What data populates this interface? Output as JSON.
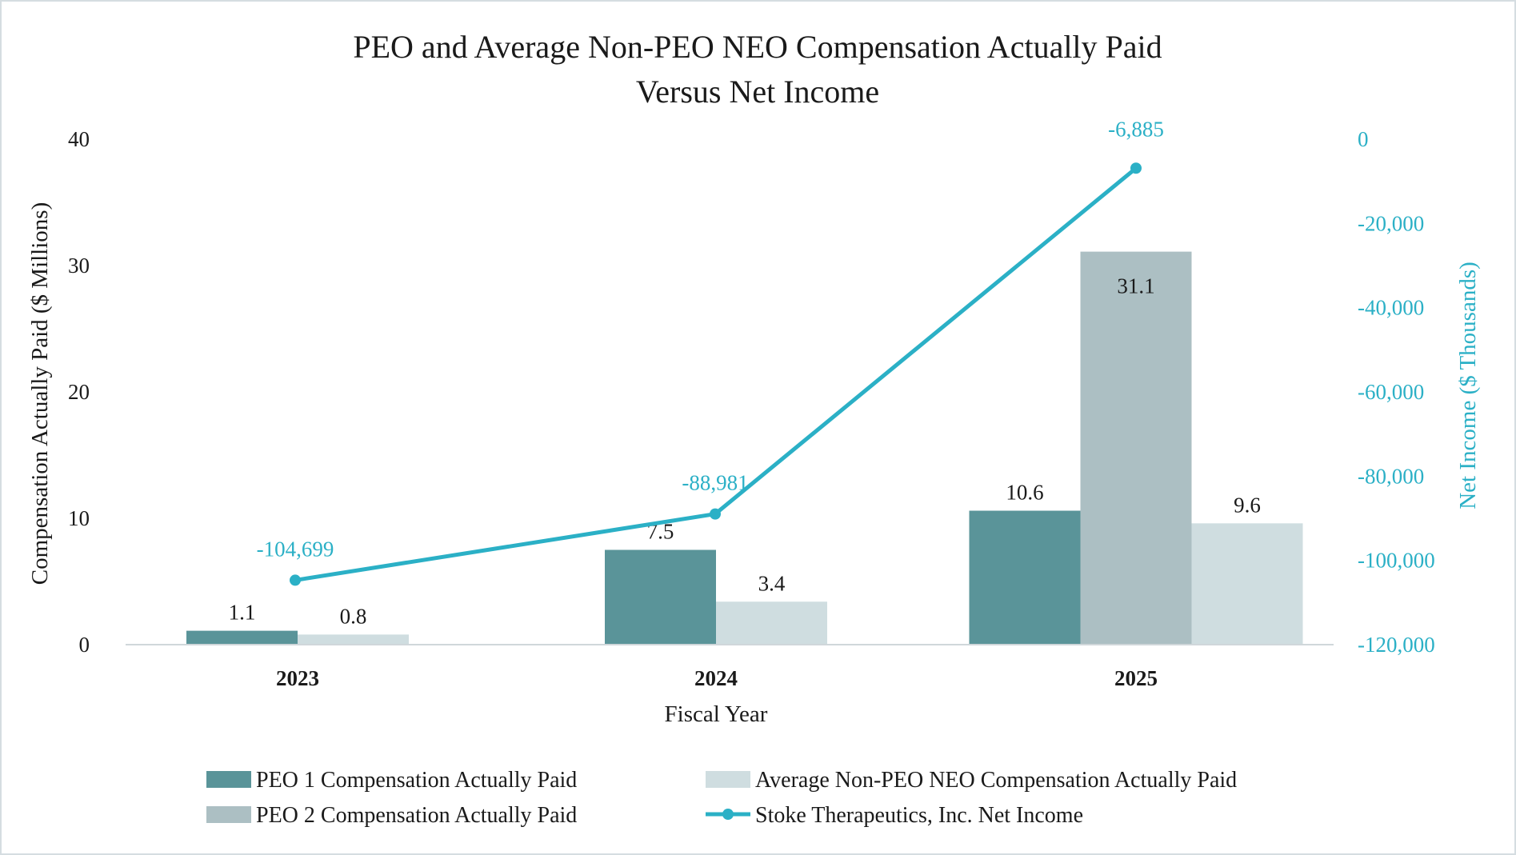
{
  "chart_data": {
    "type": "bar",
    "title": [
      "PEO and Average Non-PEO NEO Compensation Actually Paid",
      "Versus Net Income"
    ],
    "xlabel": "Fiscal Year",
    "ylabel": "Compensation Actually Paid ($ Millions)",
    "ylabel_right": "Net Income ($ Thousands)",
    "ylim": [
      0,
      40
    ],
    "yticks": [
      "0",
      "10",
      "20",
      "30",
      "40"
    ],
    "ylim_right": [
      -120000,
      0
    ],
    "yticks_right": [
      "-120,000",
      "-100,000",
      "-80,000",
      "-60,000",
      "-40,000",
      "-20,000",
      "0"
    ],
    "categories": [
      "2023",
      "2024",
      "2025"
    ],
    "legend_position": "bottom",
    "grid": false,
    "series": [
      {
        "name": "PEO 1 Compensation Actually Paid",
        "type": "bar",
        "color": "#5a9499",
        "values": [
          1.1,
          7.5,
          10.6
        ],
        "value_labels": [
          "1.1",
          "7.5",
          "10.6"
        ]
      },
      {
        "name": "PEO 2 Compensation Actually Paid",
        "type": "bar",
        "color": "#acbfc3",
        "values": [
          null,
          null,
          31.1
        ],
        "value_labels": [
          null,
          null,
          "31.1"
        ]
      },
      {
        "name": "Average Non-PEO NEO Compensation Actually Paid",
        "type": "bar",
        "color": "#cfdde0",
        "values": [
          0.8,
          3.4,
          9.6
        ],
        "value_labels": [
          "0.8",
          "3.4",
          "9.6"
        ]
      },
      {
        "name": "Stoke Therapeutics, Inc. Net Income",
        "type": "line",
        "axis": "right",
        "color": "#2bb0c6",
        "values": [
          -104699,
          -88981,
          -6885
        ],
        "value_labels": [
          "-104,699",
          "-88,981",
          "-6,885"
        ]
      }
    ]
  }
}
